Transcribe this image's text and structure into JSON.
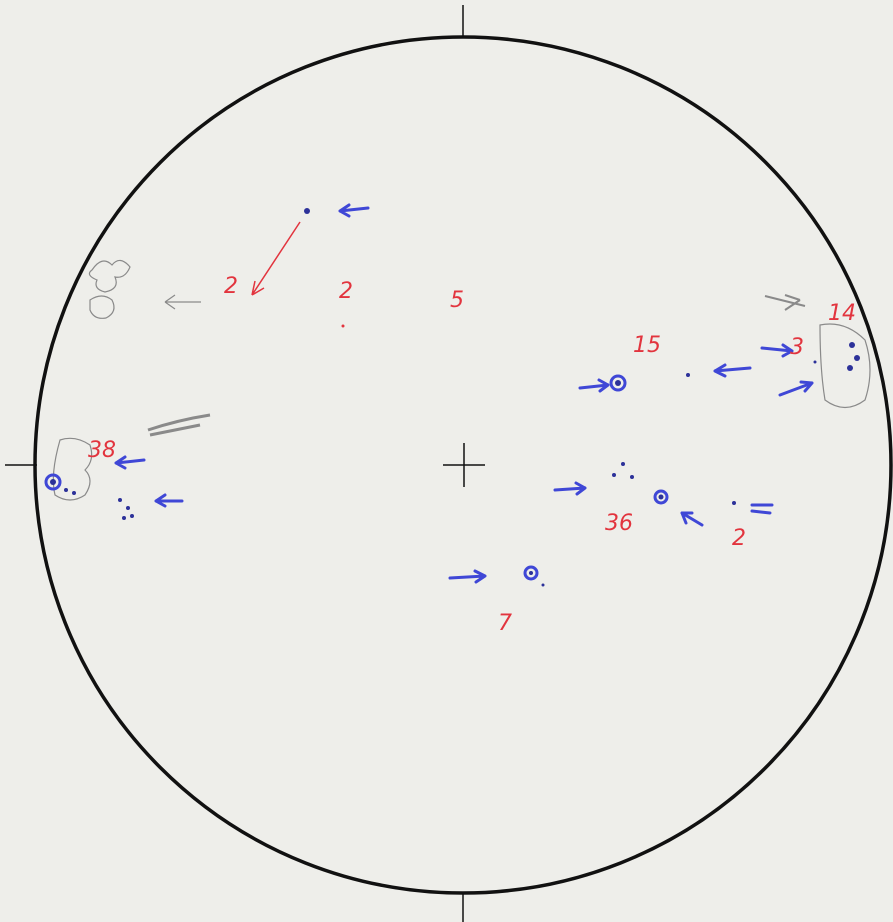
{
  "sunspot_groups": [
    {
      "label": "2"
    },
    {
      "label": "2"
    },
    {
      "label": "5"
    },
    {
      "label": "15"
    },
    {
      "label": "14"
    },
    {
      "label": "3"
    },
    {
      "label": "38"
    },
    {
      "label": "36"
    },
    {
      "label": "2"
    },
    {
      "label": "7"
    }
  ]
}
